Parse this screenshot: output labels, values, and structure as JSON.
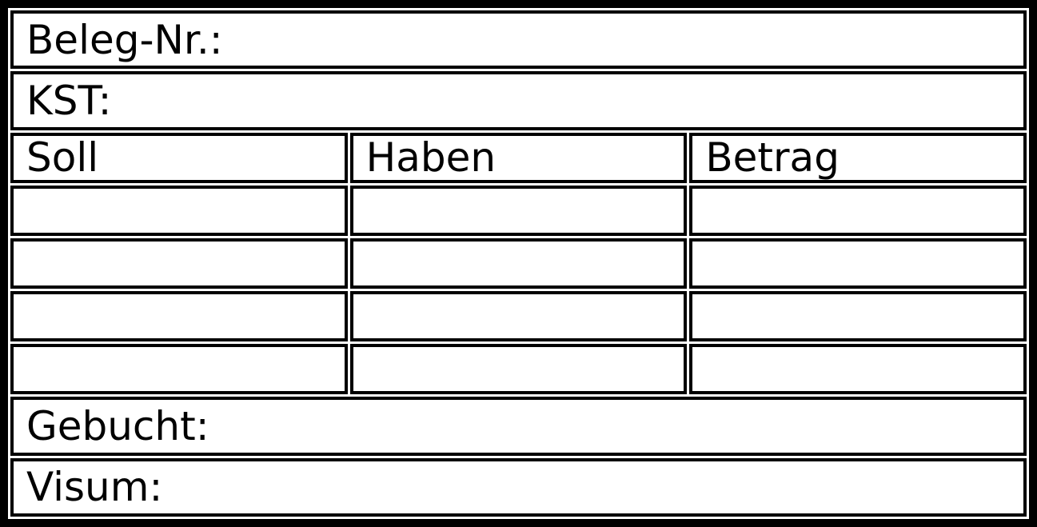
{
  "stamp": {
    "beleg_label": "Beleg-Nr.:",
    "kst_label": "KST:",
    "gebucht_label": "Gebucht:",
    "visum_label": "Visum:",
    "table": {
      "headers": [
        "Soll",
        "Haben",
        "Betrag"
      ],
      "empty_row_count": 4
    },
    "colors": {
      "line": "#000000",
      "background": "#ffffff",
      "text": "#000000"
    }
  }
}
